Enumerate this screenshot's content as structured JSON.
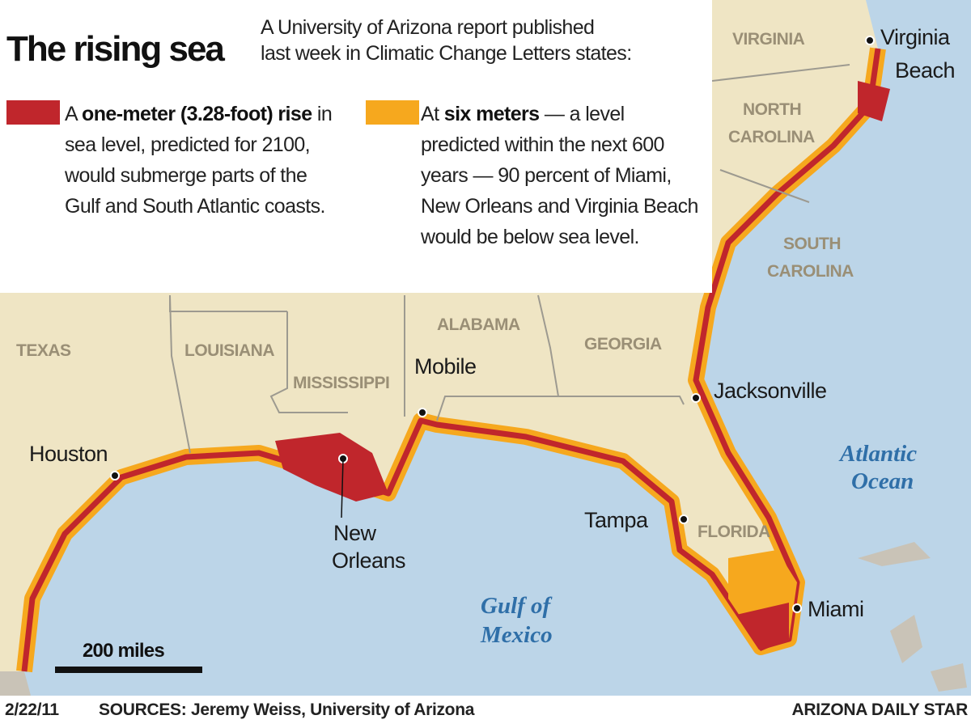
{
  "header": {
    "title": "The rising sea",
    "intro": [
      "A University of Arizona report published",
      "last week in Climatic Change Letters states:"
    ]
  },
  "legend": [
    {
      "color": "#c0262c",
      "lead": "A ",
      "bold": "one-meter (3.28-foot) rise",
      "text": " in sea level, predicted for 2100, would submerge parts of the Gulf and South Atlantic coasts."
    },
    {
      "color": "#f6a81e",
      "lead": "At ",
      "bold": "six meters",
      "text": " — a level predicted within the next 600 years — 90 percent of Miami, New Orleans and Virginia Beach would be below sea level."
    }
  ],
  "map": {
    "states": {
      "virginia": "VIRGINIA",
      "north_carolina": [
        "NORTH",
        "CAROLINA"
      ],
      "south_carolina": [
        "SOUTH",
        "CAROLINA"
      ],
      "texas": "TEXAS",
      "louisiana": "LOUISIANA",
      "mississippi": "MISSISSIPPI",
      "alabama": "ALABAMA",
      "georgia": "GEORGIA",
      "florida": "FLORIDA"
    },
    "cities": {
      "virginia_beach": [
        "Virginia",
        "Beach"
      ],
      "jacksonville": "Jacksonville",
      "mobile": "Mobile",
      "houston": "Houston",
      "new_orleans": [
        "New",
        "Orleans"
      ],
      "tampa": "Tampa",
      "miami": "Miami"
    },
    "water": {
      "atlantic": [
        "Atlantic",
        "Ocean"
      ],
      "gulf": [
        "Gulf of",
        "Mexico"
      ]
    },
    "scale": "200 miles"
  },
  "footer": {
    "date": "2/22/11",
    "sources": "SOURCES: Jeremy Weiss, University of Arizona",
    "credit": "ARIZONA DAILY STAR"
  }
}
